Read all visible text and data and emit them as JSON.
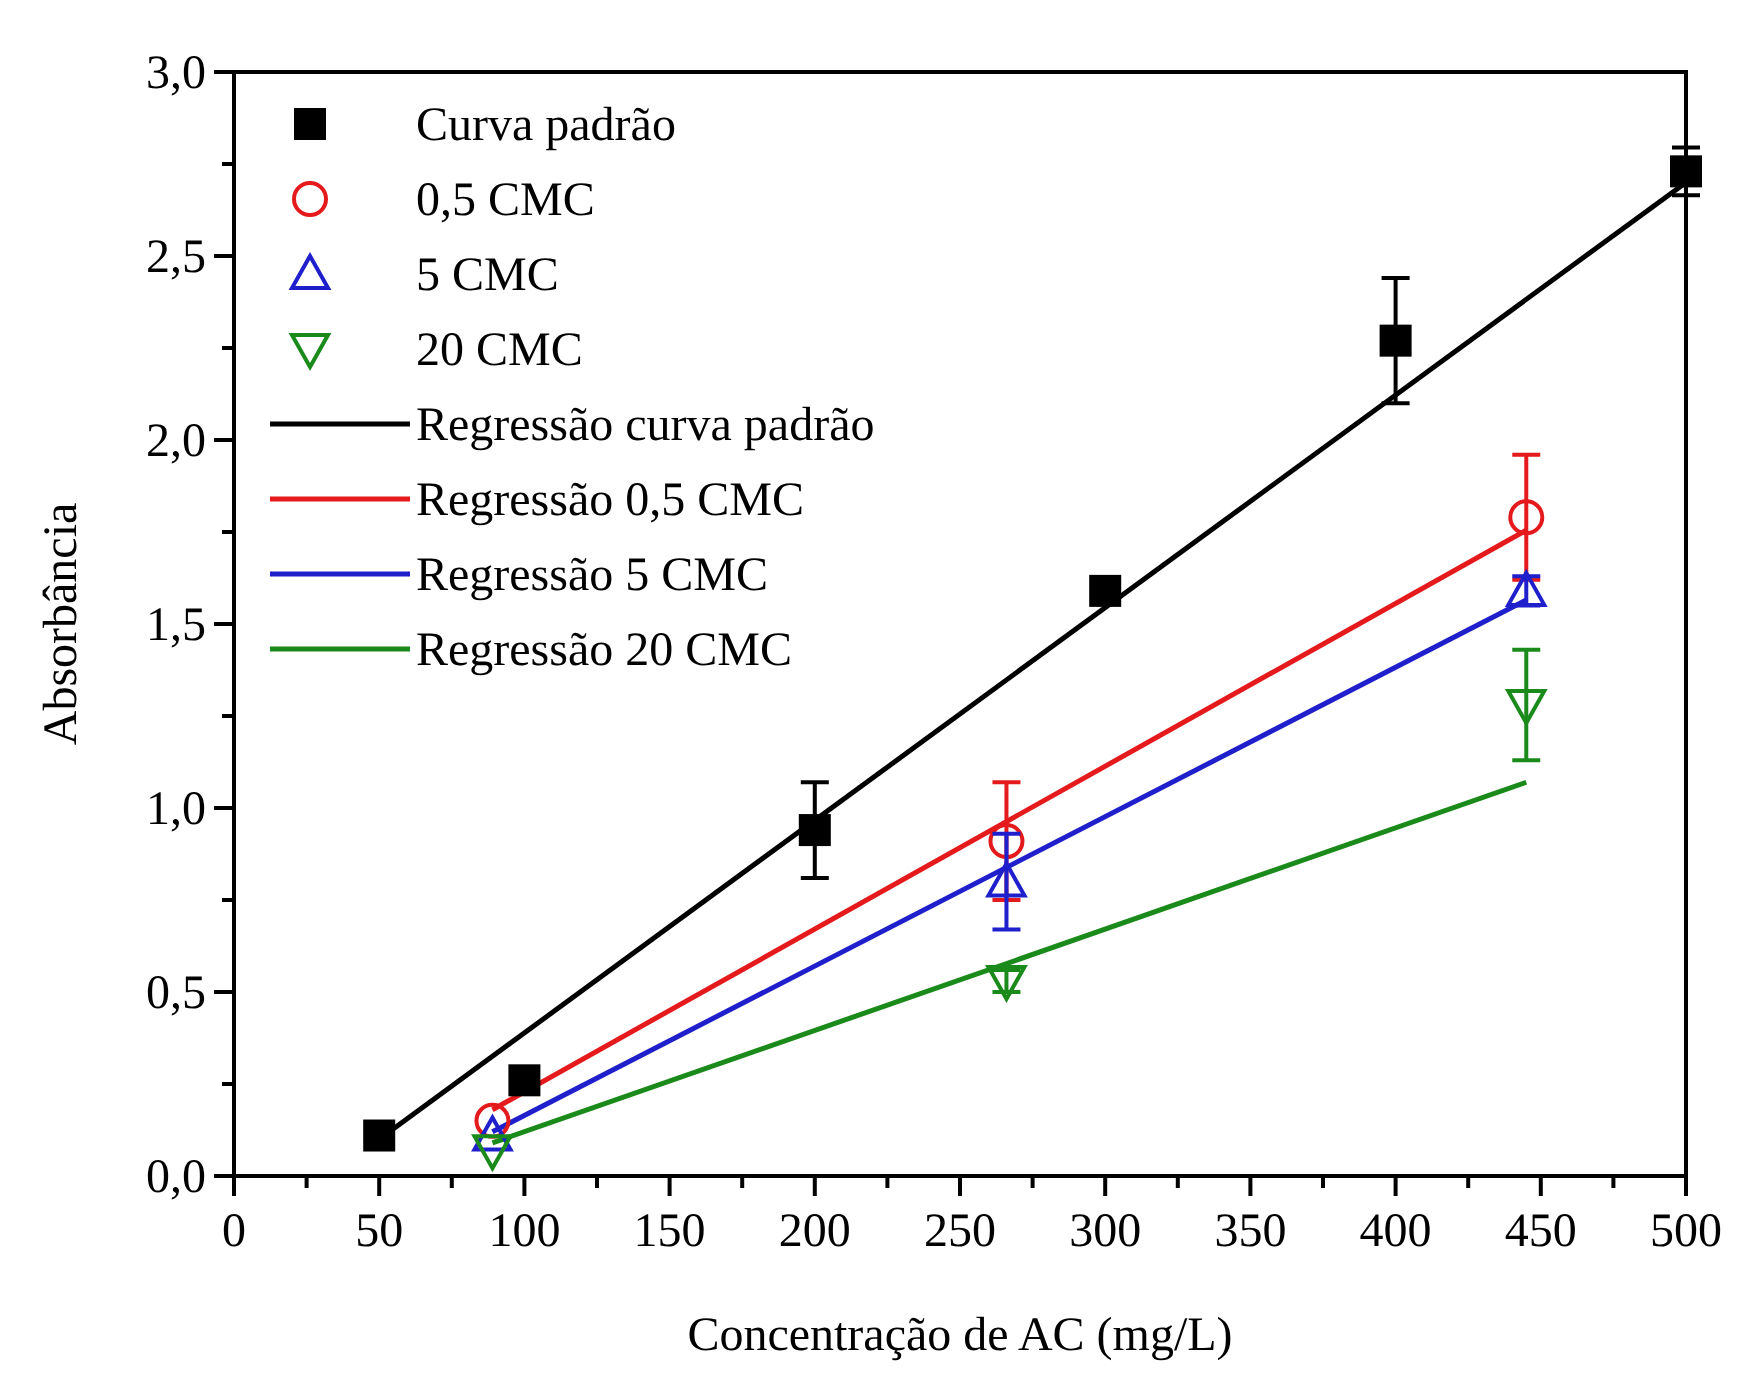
{
  "chart_data": {
    "type": "scatter",
    "xlabel": "Concentração de AC (mg/L)",
    "ylabel": "Absorbância",
    "xlim": [
      0,
      500
    ],
    "ylim": [
      0,
      3
    ],
    "xticks": [
      0,
      {
        "value": 25,
        "label": null
      },
      50,
      {
        "value": 75,
        "label": null
      },
      100,
      {
        "value": 125,
        "label": null
      },
      150,
      {
        "value": 175,
        "label": null
      },
      200,
      {
        "value": 225,
        "label": null
      },
      250,
      {
        "value": 275,
        "label": null
      },
      300,
      {
        "value": 325,
        "label": null
      },
      350,
      {
        "value": 375,
        "label": null
      },
      400,
      {
        "value": 425,
        "label": null
      },
      450,
      {
        "value": 475,
        "label": null
      },
      500
    ],
    "yticks": [
      {
        "value": 0,
        "label": "0,0"
      },
      {
        "value": 0.25,
        "label": null
      },
      {
        "value": 0.5,
        "label": "0,5"
      },
      {
        "value": 0.75,
        "label": null
      },
      {
        "value": 1,
        "label": "1,0"
      },
      {
        "value": 1.25,
        "label": null
      },
      {
        "value": 1.5,
        "label": "1,5"
      },
      {
        "value": 1.75,
        "label": null
      },
      {
        "value": 2,
        "label": "2,0"
      },
      {
        "value": 2.25,
        "label": null
      },
      {
        "value": 2.5,
        "label": "2,5"
      },
      {
        "value": 2.75,
        "label": null
      },
      {
        "value": 3,
        "label": "3,0"
      }
    ],
    "grid": false,
    "legend": "top left",
    "series": [
      {
        "name": "Curva padrão",
        "marker": "square",
        "color": "#000000",
        "x": [
          50,
          100,
          200,
          300,
          400,
          500
        ],
        "values": [
          0.11,
          0.26,
          0.94,
          1.59,
          2.27,
          2.73
        ],
        "errors": [
          null,
          null,
          0.13,
          0.02,
          0.17,
          0.065
        ]
      },
      {
        "name": "0,5 CMC",
        "marker": "circle",
        "color": "#e41a1c",
        "x": [
          89,
          266,
          445
        ],
        "values": [
          0.15,
          0.91,
          1.79
        ],
        "errors": [
          null,
          0.16,
          0.17
        ]
      },
      {
        "name": "5 CMC",
        "marker": "triangle",
        "color": "#1f1fcc",
        "x": [
          89,
          266,
          445
        ],
        "values": [
          0.11,
          0.8,
          1.59
        ],
        "errors": [
          null,
          0.13,
          0.04
        ]
      },
      {
        "name": "20 CMC",
        "marker": "triangle-down",
        "color": "#1a8a1a",
        "x": [
          89,
          266,
          445
        ],
        "values": [
          0.07,
          0.53,
          1.28
        ],
        "errors": [
          null,
          0.03,
          0.15
        ]
      },
      {
        "name": "Regressão curva padrão",
        "type": "line",
        "marker": "none",
        "color": "#000000",
        "x": [
          50,
          500
        ],
        "values": [
          0.1,
          2.7
        ]
      },
      {
        "name": "Regressão 0,5 CMC",
        "type": "line",
        "marker": "none",
        "color": "#e41a1c",
        "x": [
          89,
          445
        ],
        "values": [
          0.18,
          1.755
        ]
      },
      {
        "name": "Regressão 5 CMC",
        "type": "line",
        "marker": "none",
        "color": "#1f1fcc",
        "x": [
          89,
          445
        ],
        "values": [
          0.12,
          1.565
        ]
      },
      {
        "name": "Regressão 20 CMC",
        "type": "line",
        "marker": "none",
        "color": "#1a8a1a",
        "x": [
          89,
          445
        ],
        "values": [
          0.09,
          1.07
        ]
      }
    ]
  }
}
